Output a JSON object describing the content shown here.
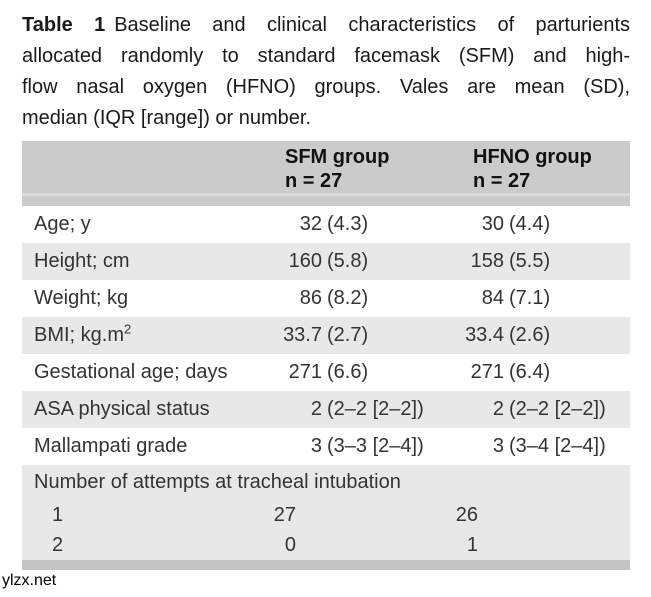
{
  "title": {
    "label": "Table 1",
    "lines": [
      "Baseline and clinical characteristics of parturients",
      "allocated randomly to standard facemask (SFM) and high-",
      "flow nasal oxygen (HFNO) groups. Vales are mean (SD),",
      "median (IQR [range]) or number."
    ]
  },
  "table": {
    "columns": [
      {
        "name": "SFM group",
        "n_label": "n = 27"
      },
      {
        "name": "HFNO group",
        "n_label": "n = 27"
      }
    ],
    "rows": [
      {
        "label": "Age; y",
        "values": [
          "32 (4.3)",
          "30 (4.4)"
        ],
        "shaded": false,
        "type": "data"
      },
      {
        "label": "Height; cm",
        "values": [
          "160 (5.8)",
          "158 (5.5)"
        ],
        "shaded": true,
        "type": "data"
      },
      {
        "label": "Weight; kg",
        "values": [
          "86 (8.2)",
          "84 (7.1)"
        ],
        "shaded": false,
        "type": "data"
      },
      {
        "label": "BMI; kg.m",
        "label_sup": "2",
        "values": [
          "33.7 (2.7)",
          "33.4 (2.6)"
        ],
        "shaded": true,
        "type": "data"
      },
      {
        "label": "Gestational age; days",
        "values": [
          "271 (6.6)",
          "271 (6.4)"
        ],
        "shaded": false,
        "type": "data"
      },
      {
        "label": "ASA physical status",
        "values": [
          "2 (2–2 [2–2])",
          "2 (2–2 [2–2])"
        ],
        "shaded": true,
        "type": "data"
      },
      {
        "label": "Mallampati grade",
        "values": [
          "3 (3–3 [2–4])",
          "3 (3–4 [2–4])"
        ],
        "shaded": false,
        "type": "data"
      },
      {
        "label": "Number of attempts at tracheal intubation",
        "values": [],
        "shaded": true,
        "type": "section"
      },
      {
        "label": "1",
        "values": [
          "27",
          "26"
        ],
        "shaded": true,
        "type": "attempt"
      },
      {
        "label": "2",
        "values": [
          "0",
          "1"
        ],
        "shaded": true,
        "type": "attempt"
      }
    ]
  },
  "watermark": "ylzx.net",
  "colors": {
    "header_bg": "#cbcbcb",
    "row_shade": "#e8e8e8",
    "divider": "#dcdcdc",
    "bottom_bar": "#c4c4c4"
  }
}
